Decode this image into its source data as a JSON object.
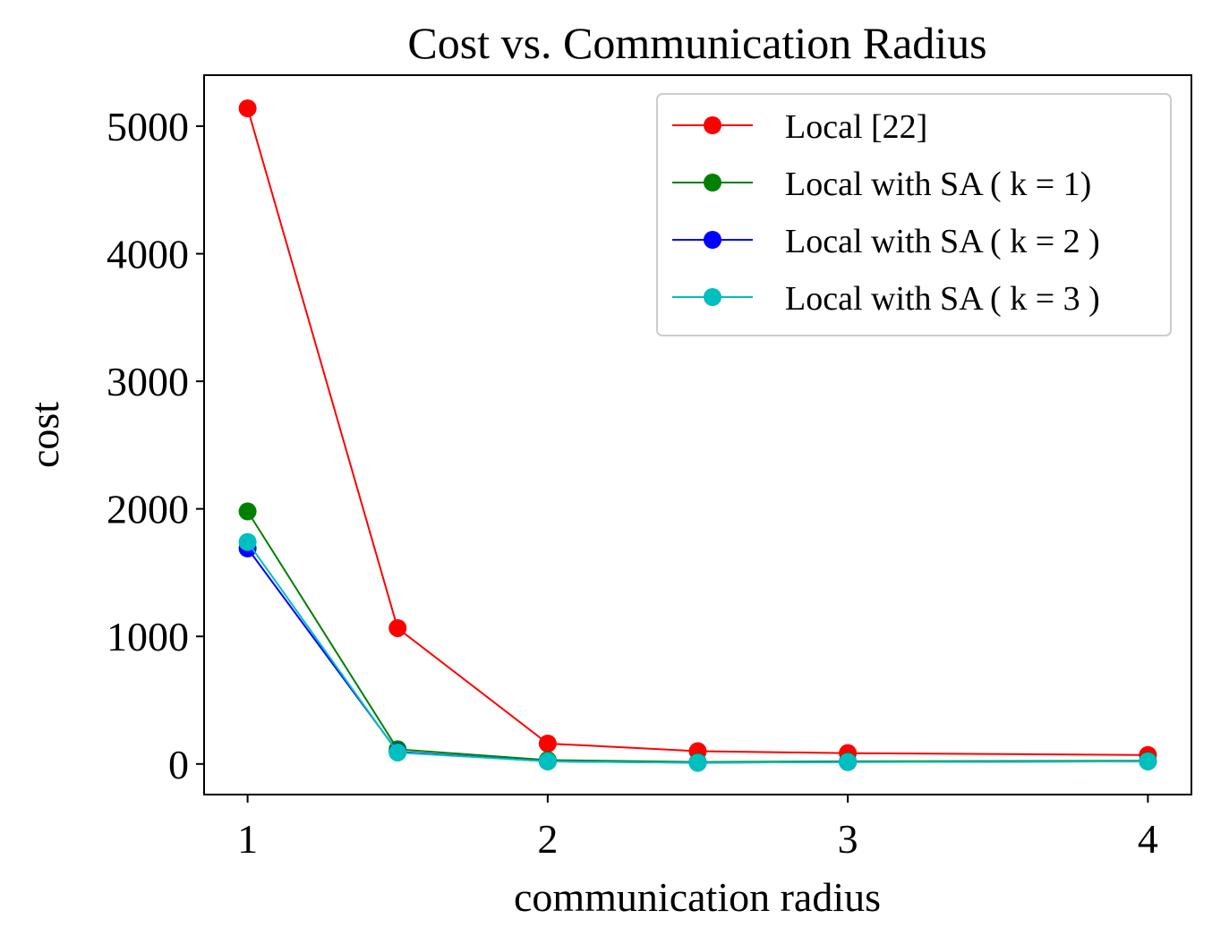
{
  "chart_data": {
    "type": "line",
    "title": "Cost vs. Communication Radius",
    "xlabel": "communication radius",
    "ylabel": "cost",
    "xlim": [
      0.855,
      4.145
    ],
    "ylim": [
      -240,
      5400
    ],
    "xticks": [
      1,
      2,
      3,
      4
    ],
    "xtick_labels": [
      "1",
      "2",
      "3",
      "4"
    ],
    "yticks": [
      0,
      1000,
      2000,
      3000,
      4000,
      5000
    ],
    "ytick_labels": [
      "0",
      "1000",
      "2000",
      "3000",
      "4000",
      "5000"
    ],
    "grid": false,
    "legend_position": "top-right",
    "x": [
      1,
      1.5,
      2,
      2.5,
      3,
      4
    ],
    "series": [
      {
        "name": "Local [22]",
        "color": "#ff0000",
        "values": [
          5140,
          1065,
          160,
          100,
          85,
          70
        ]
      },
      {
        "name": "Local with SA ( k = 1)",
        "color": "#008000",
        "values": [
          1980,
          115,
          30,
          15,
          20,
          25
        ]
      },
      {
        "name": "Local with SA ( k = 2 )",
        "color": "#0000ff",
        "values": [
          1690,
          95,
          20,
          10,
          15,
          20
        ]
      },
      {
        "name": "Local with SA ( k = 3 )",
        "color": "#00bfbf",
        "values": [
          1740,
          90,
          20,
          10,
          15,
          20
        ]
      }
    ]
  }
}
